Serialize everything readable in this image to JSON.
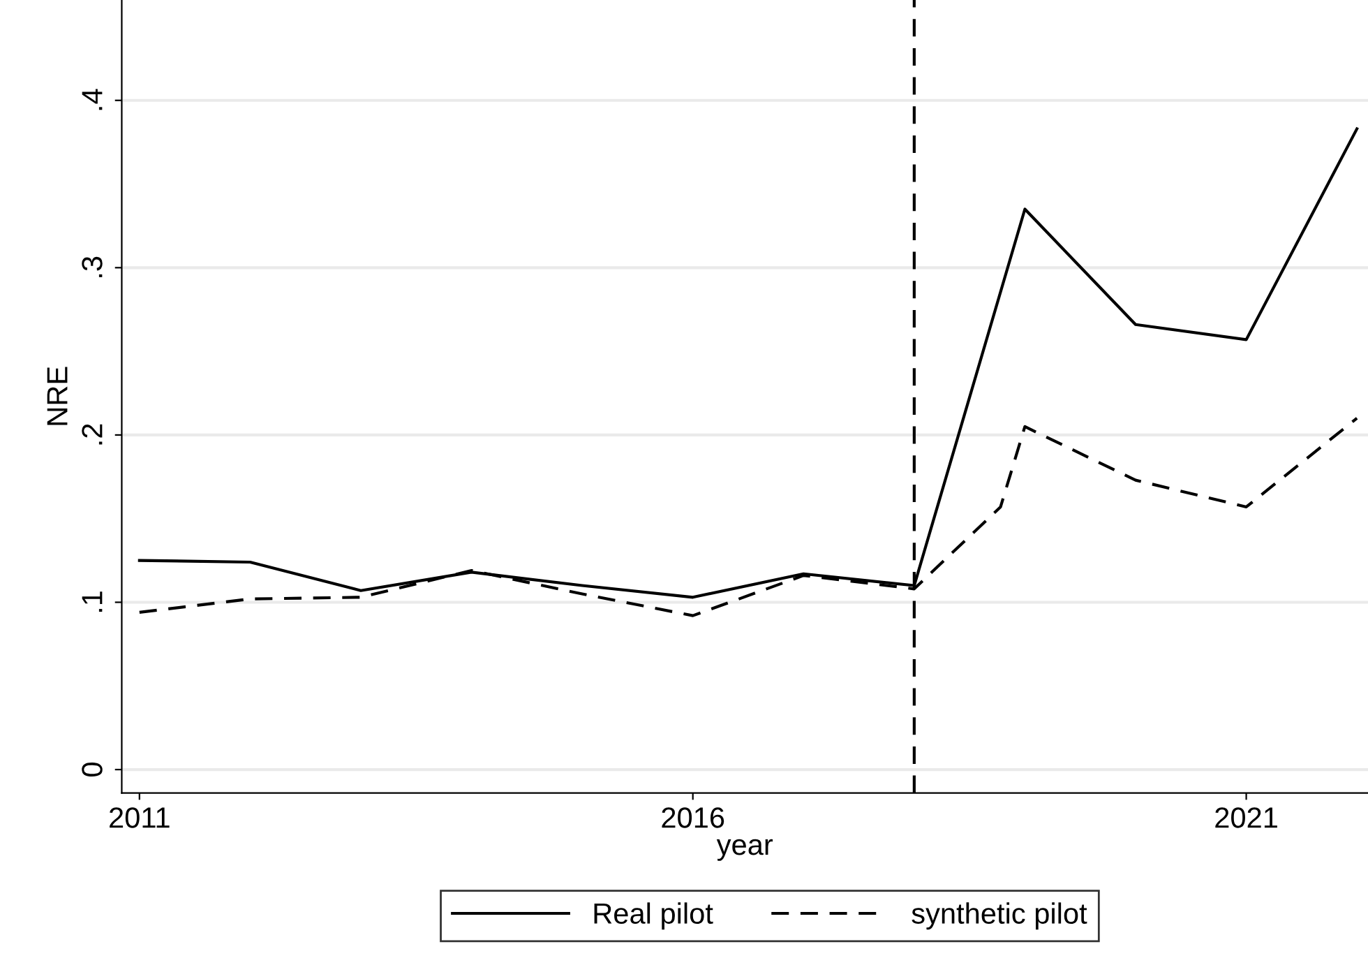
{
  "chart_data": {
    "type": "line",
    "xlabel": "year",
    "ylabel": "NRE",
    "xlim": [
      2010.84,
      2022.1
    ],
    "xticks": [
      2011,
      2016,
      2021
    ],
    "ylim": [
      -0.014,
      0.46
    ],
    "yticks": [
      {
        "value": 0,
        "label": "0"
      },
      {
        "value": 0.1,
        "label": ".1"
      },
      {
        "value": 0.2,
        "label": ".2"
      },
      {
        "value": 0.3,
        "label": ".3"
      },
      {
        "value": 0.4,
        "label": ".4"
      }
    ],
    "grid": "y",
    "legend": "bottom",
    "ref_lines": [
      {
        "axis": "x",
        "value": 2018,
        "color": "#000000",
        "line_style": "dashed"
      }
    ],
    "series": [
      {
        "name": "Real pilot",
        "color": "#000000",
        "line_style": "solid",
        "x": [
          2011,
          2012,
          2013,
          2014,
          2015,
          2016,
          2017,
          2018,
          2019,
          2020,
          2021,
          2022
        ],
        "values": [
          0.125,
          0.124,
          0.107,
          0.118,
          0.11,
          0.103,
          0.117,
          0.11,
          0.335,
          0.266,
          0.257,
          0.383
        ]
      },
      {
        "name": "synthetic pilot",
        "color": "#000000",
        "line_style": "dashed",
        "x": [
          2011,
          2012,
          2013,
          2014,
          2015,
          2016,
          2017,
          2018,
          2018.78,
          2019,
          2020,
          2021,
          2022
        ],
        "values": [
          0.094,
          0.102,
          0.103,
          0.119,
          0.105,
          0.092,
          0.116,
          0.108,
          0.157,
          0.205,
          0.173,
          0.157,
          0.21
        ]
      }
    ]
  }
}
